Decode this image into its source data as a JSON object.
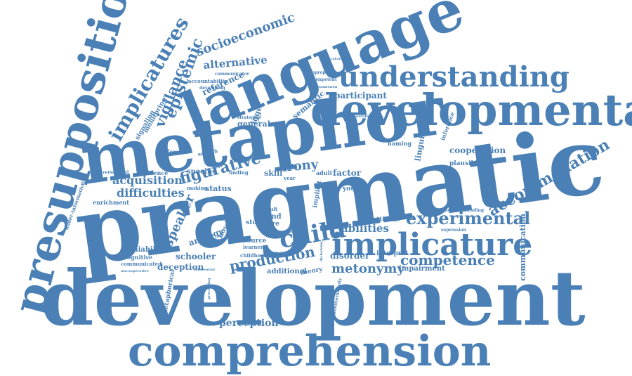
{
  "colors": {
    "word": "#4a80b5",
    "background": "#ffffff"
  },
  "words": {
    "pragmatic": "pragmatic",
    "development": "development",
    "metaphor": "metaphor",
    "language": "language",
    "developmental": "developmental",
    "presupposition": "presupposition",
    "comprehension": "comprehension",
    "understanding": "understanding",
    "implicature": "implicature",
    "implicatures": "implicatures",
    "experimental": "experimental",
    "accommodation": "accommodation",
    "competence": "competence",
    "production": "production",
    "metonymy": "metonymy",
    "child": "child",
    "figurative": "figurative",
    "acquisition": "acquisition",
    "difficulties": "difficulties",
    "epistemic": "epistemic",
    "vigilance": "vigilance",
    "socioeconomic": "socioeconomic",
    "alternative": "alternative",
    "irony": "irony",
    "speaker": "speaker",
    "abilities": "abilities",
    "cooperation": "cooperation",
    "perception": "perception",
    "communication": "communication",
    "disorder": "disorder",
    "impairment": "impairment",
    "deception": "deception",
    "deniability": "deniability",
    "schooler": "schooler",
    "analogy": "analogy",
    "participant": "participant",
    "reference": "reference",
    "general": "general",
    "trigger": "trigger",
    "signaling": "signaling",
    "monitoring": "monitoring",
    "semantic": "semantic",
    "specific": "specific",
    "status": "status",
    "evidence": "evidence",
    "enrichment": "enrichment",
    "under_informativity": "under-informativity",
    "conversational": "conversational",
    "different": "different",
    "english": "english",
    "making": "making",
    "skill": "skill",
    "factor": "factor",
    "adult": "adult",
    "young": "young",
    "naming": "naming",
    "plausible": "plausible",
    "linguistic": "linguistic",
    "inference": "inference",
    "appropriate": "appropriate",
    "competent": "competent",
    "accountability": "accountability",
    "communicator": "communicator",
    "developing": "developing",
    "strategies": "strategies",
    "cognitive": "cognitive",
    "communicated": "communicated",
    "metaphorical": "metaphorical",
    "uncooperative": "uncooperative",
    "referential": "referential",
    "processing": "processing",
    "novel": "novel",
    "childhood": "childhood",
    "honesty": "honesty",
    "source": "source",
    "learner": "learner",
    "additional": "additional",
    "theory": "theory",
    "interpret": "interpret",
    "attitude": "attitude",
    "result": "result",
    "mind": "mind",
    "study": "study",
    "more": "more",
    "multiple": "multiple",
    "misleading": "misleading",
    "expression": "expression",
    "commitment": "commitment",
    "year": "year",
    "finding": "finding",
    "dichotomy": "dichotomy",
    "uninformativity": "uninformativity",
    "research": "research",
    "implicit": "implicit",
    "strength": "strength",
    "gender": "gender",
    "accountable": "accountable",
    "phenomenon": "phenomenon",
    "implicature_small": "implicature",
    "perspective": "perspective"
  }
}
